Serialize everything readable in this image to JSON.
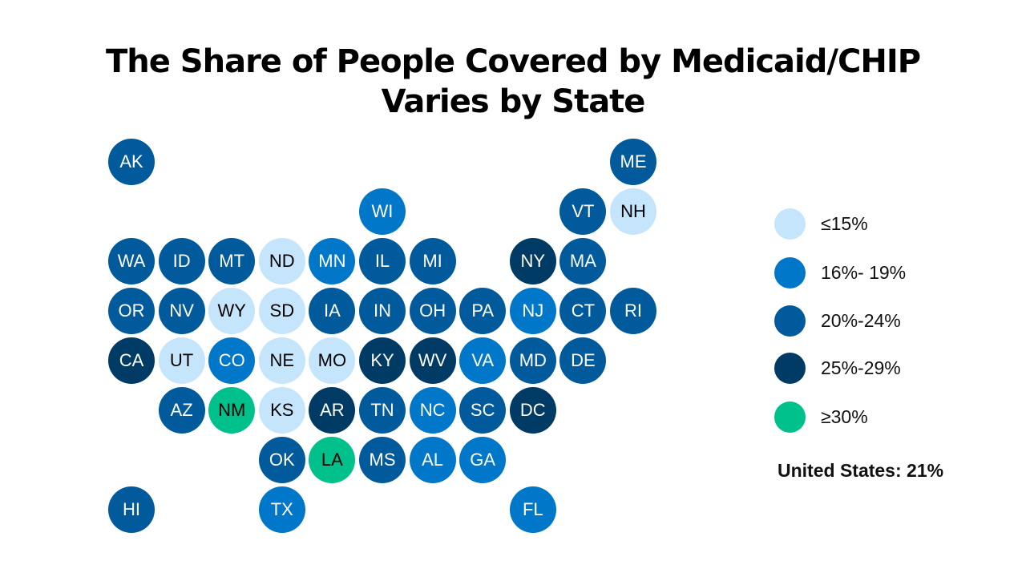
{
  "title_line1": "The Share of People Covered by Medicaid/CHIP",
  "title_line2": "Varies by State",
  "legend": [
    {
      "label": "≤15%",
      "color": "#c5e5fd"
    },
    {
      "label": "16%- 19%",
      "color": "#0077c8"
    },
    {
      "label": "20%-24%",
      "color": "#005a9b"
    },
    {
      "label": "25%-29%",
      "color": "#003b66"
    },
    {
      "label": "≥30%",
      "color": "#00c08b"
    }
  ],
  "national": "United States: 21%",
  "states": [
    {
      "abbr": "AK",
      "bin": 2
    },
    {
      "abbr": "ME",
      "bin": 2
    },
    {
      "abbr": "WI",
      "bin": 1
    },
    {
      "abbr": "VT",
      "bin": 2
    },
    {
      "abbr": "NH",
      "bin": 0
    },
    {
      "abbr": "WA",
      "bin": 2
    },
    {
      "abbr": "ID",
      "bin": 2
    },
    {
      "abbr": "MT",
      "bin": 2
    },
    {
      "abbr": "ND",
      "bin": 0
    },
    {
      "abbr": "MN",
      "bin": 1
    },
    {
      "abbr": "IL",
      "bin": 2
    },
    {
      "abbr": "MI",
      "bin": 2
    },
    {
      "abbr": "NY",
      "bin": 3
    },
    {
      "abbr": "MA",
      "bin": 2
    },
    {
      "abbr": "OR",
      "bin": 2
    },
    {
      "abbr": "NV",
      "bin": 2
    },
    {
      "abbr": "WY",
      "bin": 0
    },
    {
      "abbr": "SD",
      "bin": 0
    },
    {
      "abbr": "IA",
      "bin": 2
    },
    {
      "abbr": "IN",
      "bin": 2
    },
    {
      "abbr": "OH",
      "bin": 2
    },
    {
      "abbr": "PA",
      "bin": 2
    },
    {
      "abbr": "NJ",
      "bin": 1
    },
    {
      "abbr": "CT",
      "bin": 2
    },
    {
      "abbr": "RI",
      "bin": 2
    },
    {
      "abbr": "CA",
      "bin": 3
    },
    {
      "abbr": "UT",
      "bin": 0
    },
    {
      "abbr": "CO",
      "bin": 1
    },
    {
      "abbr": "NE",
      "bin": 0
    },
    {
      "abbr": "MO",
      "bin": 0
    },
    {
      "abbr": "KY",
      "bin": 3
    },
    {
      "abbr": "WV",
      "bin": 3
    },
    {
      "abbr": "VA",
      "bin": 1
    },
    {
      "abbr": "MD",
      "bin": 2
    },
    {
      "abbr": "DE",
      "bin": 2
    },
    {
      "abbr": "AZ",
      "bin": 2
    },
    {
      "abbr": "NM",
      "bin": 4
    },
    {
      "abbr": "KS",
      "bin": 0
    },
    {
      "abbr": "AR",
      "bin": 3
    },
    {
      "abbr": "TN",
      "bin": 2
    },
    {
      "abbr": "NC",
      "bin": 1
    },
    {
      "abbr": "SC",
      "bin": 2
    },
    {
      "abbr": "DC",
      "bin": 3
    },
    {
      "abbr": "OK",
      "bin": 2
    },
    {
      "abbr": "LA",
      "bin": 4
    },
    {
      "abbr": "MS",
      "bin": 2
    },
    {
      "abbr": "AL",
      "bin": 1
    },
    {
      "abbr": "GA",
      "bin": 1
    },
    {
      "abbr": "HI",
      "bin": 2
    },
    {
      "abbr": "TX",
      "bin": 1
    },
    {
      "abbr": "FL",
      "bin": 1
    }
  ]
}
